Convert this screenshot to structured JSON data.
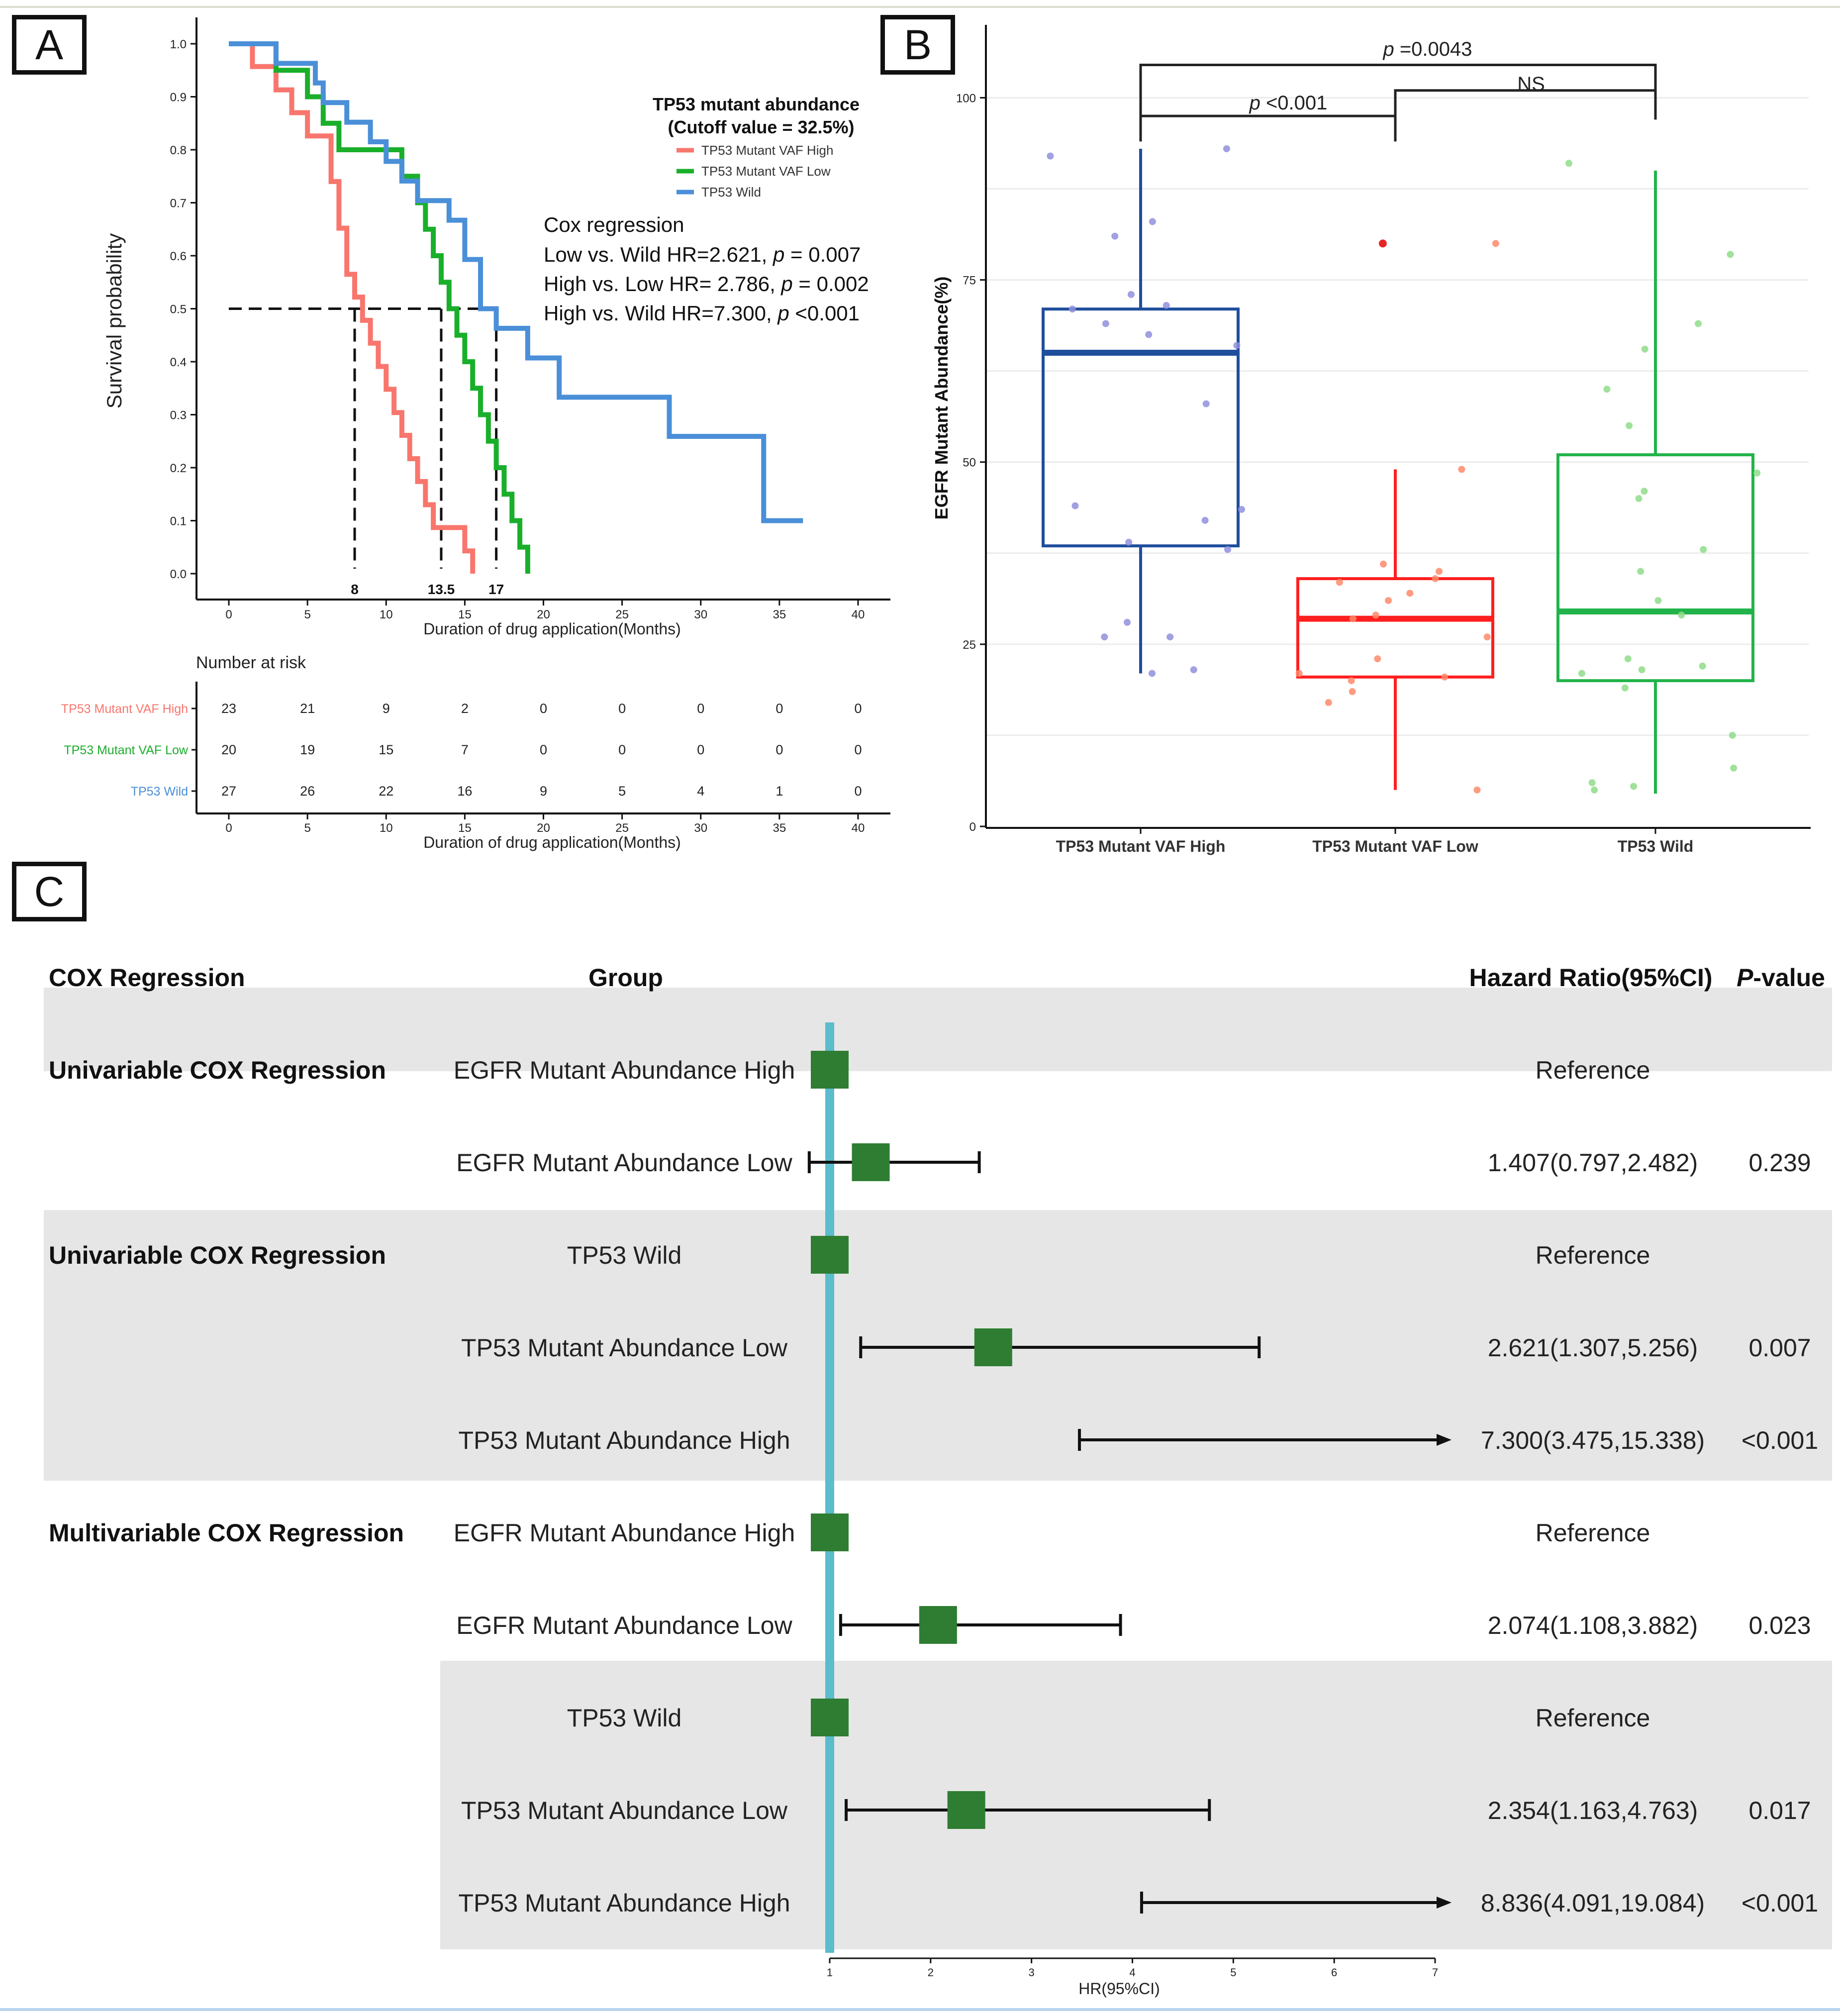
{
  "panels": {
    "a": "A",
    "b": "B",
    "c": "C"
  },
  "chart_data": [
    {
      "type": "line",
      "subtype": "kaplan-meier",
      "ylabel": "Survival probability",
      "xlabel": "Duration of drug application(Months)",
      "xlim": [
        0,
        40
      ],
      "ylim": [
        0,
        1.0
      ],
      "xticks": [
        "0",
        "5",
        "10",
        "15",
        "20",
        "25",
        "30",
        "35",
        "40"
      ],
      "yticks": [
        "0.0",
        "0.1",
        "0.2",
        "0.3",
        "0.4",
        "0.5",
        "0.6",
        "0.7",
        "0.8",
        "0.9",
        "1.0"
      ],
      "legend_title": "TP53 mutant abundance",
      "legend_subtitle": "(Cutoff value = 32.5%)",
      "series": [
        {
          "name": "TP53 Mutant VAF High",
          "color": "#f8766d",
          "x": [
            0,
            1.5,
            3,
            4,
            5,
            6.5,
            7,
            7.5,
            8,
            8.5,
            9,
            9.5,
            10,
            10.5,
            11,
            11.5,
            12,
            12.5,
            13,
            14,
            15,
            15.5
          ],
          "y": [
            1.0,
            0.957,
            0.913,
            0.87,
            0.826,
            0.74,
            0.652,
            0.565,
            0.522,
            0.478,
            0.435,
            0.391,
            0.348,
            0.304,
            0.261,
            0.217,
            0.174,
            0.13,
            0.087,
            0.087,
            0.043,
            0.0
          ]
        },
        {
          "name": "TP53 Mutant VAF Low",
          "color": "#1aaf2b",
          "x": [
            0,
            3,
            5,
            6,
            7,
            8,
            10,
            11,
            12,
            12.5,
            13,
            13.5,
            14,
            14.5,
            15,
            15.5,
            16,
            16.5,
            17,
            17.5,
            18,
            18.5,
            19
          ],
          "y": [
            1.0,
            0.95,
            0.9,
            0.85,
            0.8,
            0.8,
            0.8,
            0.75,
            0.7,
            0.65,
            0.6,
            0.55,
            0.5,
            0.45,
            0.4,
            0.35,
            0.3,
            0.25,
            0.2,
            0.15,
            0.1,
            0.05,
            0.0
          ]
        },
        {
          "name": "TP53 Wild",
          "color": "#4a8fd8",
          "x": [
            0,
            3,
            5.5,
            6,
            7.5,
            9,
            10,
            11,
            12,
            14,
            15,
            16,
            17,
            19,
            21,
            28,
            34,
            36.5
          ],
          "y": [
            1.0,
            0.963,
            0.926,
            0.889,
            0.852,
            0.815,
            0.778,
            0.741,
            0.704,
            0.667,
            0.593,
            0.5,
            0.463,
            0.407,
            0.333,
            0.259,
            0.1,
            0.1
          ]
        }
      ],
      "medians": [
        {
          "x": 8,
          "label": "8"
        },
        {
          "x": 13.5,
          "label": "13.5"
        },
        {
          "x": 17,
          "label": "17"
        }
      ],
      "cox": {
        "title": "Cox regression",
        "lines": [
          {
            "a": "Low vs. Wild  HR=2.621, ",
            "p": "p",
            "b": " = 0.007"
          },
          {
            "a": "High vs. Low HR= 2.786, ",
            "p": "p",
            "b": " = 0.002"
          },
          {
            "a": "High vs. Wild HR=7.300, ",
            "p": "p",
            "b": " <0.001"
          }
        ]
      },
      "risk_table": {
        "title": "Number at risk",
        "xlabel": "Duration of drug application(Months)",
        "rows": [
          {
            "name": "TP53 Mutant VAF High",
            "values": [
              "23",
              "21",
              "9",
              "2",
              "0",
              "0",
              "0",
              "0",
              "0"
            ]
          },
          {
            "name": "TP53 Mutant VAF Low",
            "values": [
              "20",
              "19",
              "15",
              "7",
              "0",
              "0",
              "0",
              "0",
              "0"
            ]
          },
          {
            "name": "TP53 Wild",
            "values": [
              "27",
              "26",
              "22",
              "16",
              "9",
              "5",
              "4",
              "1",
              "0"
            ]
          }
        ]
      }
    },
    {
      "type": "box",
      "ylabel": "EGFR Mutant Abundance(%)",
      "ylim": [
        0,
        110
      ],
      "yticks": [
        "0",
        "25",
        "50",
        "75",
        "100"
      ],
      "categories": [
        "TP53 Mutant VAF High",
        "TP53 Mutant VAF Low",
        "TP53 Wild"
      ],
      "boxes": [
        {
          "color": "#1f4e9c",
          "point_color": "#8f8fdd",
          "min": 21,
          "q1": 38.5,
          "median": 65,
          "q3": 71,
          "max": 93,
          "points": [
            93,
            92,
            83,
            81,
            73,
            71.5,
            71,
            69,
            67.5,
            66,
            58,
            44,
            43.5,
            42,
            39,
            38,
            28,
            26,
            26,
            21.5,
            21
          ]
        },
        {
          "color": "#ff1f1f",
          "point_color": "#ff8a6a",
          "min": 5,
          "q1": 20.5,
          "median": 28.5,
          "q3": 34,
          "max": 49,
          "points": [
            80,
            80,
            49,
            36,
            35,
            34,
            33.5,
            32,
            31,
            29,
            28.5,
            26,
            23,
            21,
            20.5,
            20,
            18.5,
            17,
            5
          ]
        },
        {
          "color": "#22b34a",
          "point_color": "#8fdc8a",
          "min": 4.5,
          "q1": 20,
          "median": 29.5,
          "q3": 51,
          "max": 90,
          "points": [
            91,
            78.5,
            69,
            65.5,
            60,
            55,
            48.5,
            46,
            45,
            38,
            35,
            31,
            29,
            23,
            22,
            21.5,
            21,
            19,
            12.5,
            8,
            6,
            5.5,
            5
          ]
        }
      ],
      "annotations": [
        {
          "p": "p",
          "text": " =0.0043"
        },
        {
          "p": "p",
          "text": " <0.001"
        },
        {
          "text": "NS"
        }
      ]
    },
    {
      "type": "forest",
      "columns": {
        "section": "COX Regression",
        "group": "Group",
        "hr": "Hazard Ratio(95%CI)",
        "p_italic": "P",
        "p_rest": "-value"
      },
      "xlabel": "HR(95%CI)",
      "xlim": [
        1,
        7
      ],
      "xticks": [
        "1",
        "2",
        "3",
        "4",
        "5",
        "6",
        "7"
      ],
      "rows": [
        {
          "section": "Univariable COX Regression",
          "group": "EGFR Mutant Abundance High",
          "hr": 1,
          "lo": null,
          "hi": null,
          "arrow": false,
          "hr_text": "Reference",
          "p": ""
        },
        {
          "section": "",
          "group": "EGFR Mutant Abundance Low",
          "hr": 1.407,
          "lo": 0.797,
          "hi": 2.482,
          "arrow": false,
          "hr_text": "1.407(0.797,2.482)",
          "p": "0.239"
        },
        {
          "section": "Univariable COX Regression",
          "group": "TP53 Wild",
          "hr": 1,
          "lo": null,
          "hi": null,
          "arrow": false,
          "hr_text": "Reference",
          "p": ""
        },
        {
          "section": "",
          "group": "TP53 Mutant Abundance Low",
          "hr": 2.621,
          "lo": 1.307,
          "hi": 5.256,
          "arrow": false,
          "hr_text": "2.621(1.307,5.256)",
          "p": "0.007"
        },
        {
          "section": "",
          "group": "TP53 Mutant Abundance High",
          "hr": 7.3,
          "lo": 3.475,
          "hi": 15.338,
          "arrow": true,
          "hr_text": "7.300(3.475,15.338)",
          "p": "<0.001"
        },
        {
          "section": "Multivariable COX Regression",
          "group": "EGFR Mutant Abundance High",
          "hr": 1,
          "lo": null,
          "hi": null,
          "arrow": false,
          "hr_text": "Reference",
          "p": ""
        },
        {
          "section": "",
          "group": "EGFR Mutant Abundance Low",
          "hr": 2.074,
          "lo": 1.108,
          "hi": 3.882,
          "arrow": false,
          "hr_text": "2.074(1.108,3.882)",
          "p": "0.023"
        },
        {
          "section": "",
          "group": "TP53 Wild",
          "hr": 1,
          "lo": null,
          "hi": null,
          "arrow": false,
          "hr_text": "Reference",
          "p": ""
        },
        {
          "section": "",
          "group": "TP53 Mutant Abundance Low",
          "hr": 2.354,
          "lo": 1.163,
          "hi": 4.763,
          "arrow": false,
          "hr_text": "2.354(1.163,4.763)",
          "p": "0.017"
        },
        {
          "section": "",
          "group": "TP53 Mutant Abundance High",
          "hr": 8.836,
          "lo": 4.091,
          "hi": 19.084,
          "arrow": true,
          "hr_text": "8.836(4.091,19.084)",
          "p": "<0.001"
        }
      ]
    }
  ]
}
